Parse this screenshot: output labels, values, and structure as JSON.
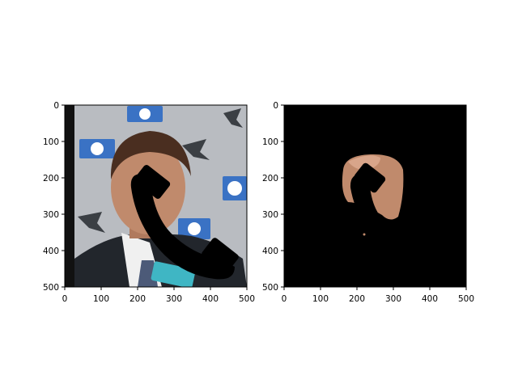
{
  "chart_data": [
    {
      "type": "image",
      "content": "face photo with black telephone-handset shape overlaid",
      "xlim": [
        0,
        500
      ],
      "ylim": [
        500,
        0
      ],
      "x_ticks": [
        0,
        100,
        200,
        300,
        400,
        500
      ],
      "y_ticks": [
        0,
        100,
        200,
        300,
        400,
        500
      ],
      "title": "",
      "xlabel": "",
      "ylabel": ""
    },
    {
      "type": "image",
      "content": "segmented face skin region on black background with black telephone-handset shape overlaid",
      "xlim": [
        0,
        500
      ],
      "ylim": [
        500,
        0
      ],
      "x_ticks": [
        0,
        100,
        200,
        300,
        400,
        500
      ],
      "y_ticks": [
        0,
        100,
        200,
        300,
        400,
        500
      ],
      "title": "",
      "xlabel": "",
      "ylabel": ""
    }
  ],
  "colors": {
    "background_wall": "#b9bcc1",
    "skin": "#c08a6c",
    "hair": "#4a2e20",
    "suit": "#22262c",
    "shirt": "#f0f0f0",
    "logo_blue": "#3a72c4",
    "mask": "#000000"
  }
}
